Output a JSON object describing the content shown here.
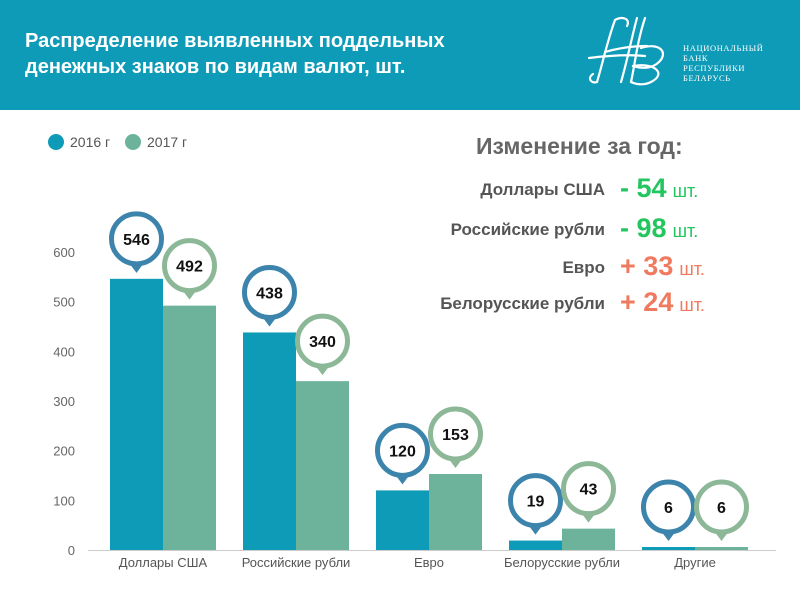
{
  "header": {
    "title_line1": "Распределение выявленных поддельных",
    "title_line2": "денежных знаков по видам валют, шт.",
    "logo": {
      "line1": "НАЦИОНАЛЬНЫЙ",
      "line2": "БАНК",
      "line3": "РЕСПУБЛИКИ",
      "line4": "БЕЛАРУСЬ"
    }
  },
  "changes": {
    "title": "Изменение за год:",
    "items": [
      {
        "label": "Доллары США",
        "sign": "-",
        "value": "54",
        "unit": "шт.",
        "color": "#22c55e"
      },
      {
        "label": "Российские рубли",
        "sign": "-",
        "value": "98",
        "unit": "шт.",
        "color": "#22c55e"
      },
      {
        "label": "Евро",
        "sign": "+",
        "value": "33",
        "unit": "шт.",
        "color": "#f07a60"
      },
      {
        "label": "Белорусские рубли",
        "sign": "+",
        "value": "24",
        "unit": "шт.",
        "color": "#f07a60"
      }
    ]
  },
  "colors": {
    "header": "#0e9bb8",
    "series_2016": "#0e9bb8",
    "series_2017": "#6db39c",
    "pin_2016_border": "#3d84ad",
    "pin_2017_border": "#8cb898"
  },
  "chart_data": {
    "type": "bar",
    "categories": [
      "Доллары США",
      "Российские рубли",
      "Евро",
      "Белорусские рубли",
      "Другие"
    ],
    "series": [
      {
        "name": "2016 г",
        "values": [
          546,
          438,
          120,
          19,
          6
        ]
      },
      {
        "name": "2017 г",
        "values": [
          492,
          340,
          153,
          43,
          6
        ]
      }
    ],
    "yticks": [
      "0",
      "100",
      "200",
      "300",
      "400",
      "500",
      "600"
    ],
    "ylim": [
      0,
      600
    ],
    "grid": false,
    "legend_position": "top-left",
    "data_labels": "callout-pins"
  }
}
